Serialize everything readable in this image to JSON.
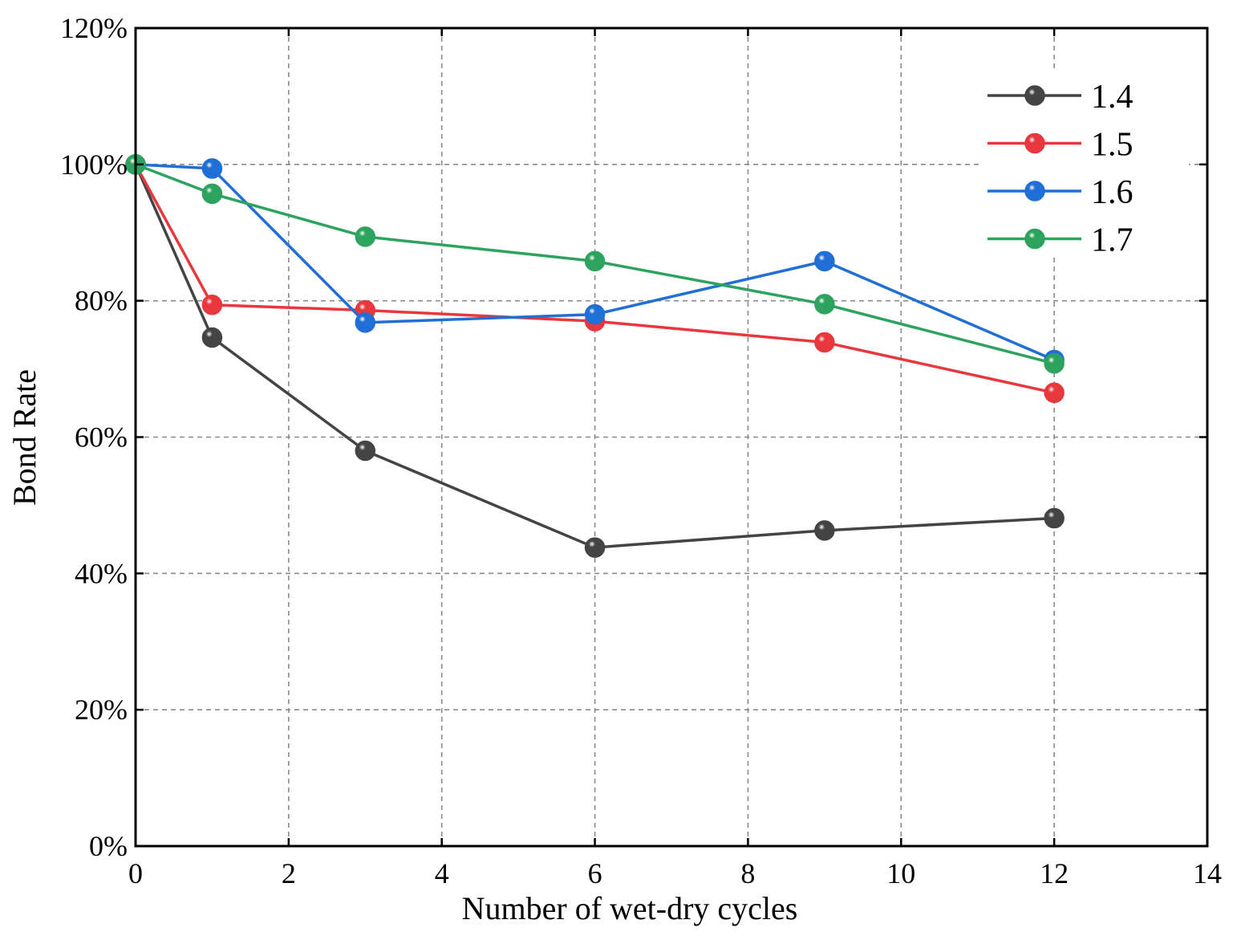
{
  "chart_data": {
    "type": "line",
    "title": "",
    "xlabel": "Number of wet-dry cycles",
    "ylabel": "Bond Rate",
    "xlim": [
      0,
      14
    ],
    "ylim": [
      0,
      120
    ],
    "xticks": [
      0,
      2,
      4,
      6,
      8,
      10,
      12,
      14
    ],
    "yticks": [
      0,
      20,
      40,
      60,
      80,
      100,
      120
    ],
    "x_tick_labels": [
      "0",
      "2",
      "4",
      "6",
      "8",
      "10",
      "12",
      "14"
    ],
    "y_tick_labels": [
      "0%",
      "20%",
      "40%",
      "60%",
      "80%",
      "100%",
      "120%"
    ],
    "grid": true,
    "legend_position": "top-right",
    "x": [
      0,
      1,
      3,
      6,
      9,
      12
    ],
    "series": [
      {
        "name": "1.4",
        "color": "#444444",
        "values": [
          100,
          74.6,
          58.0,
          43.8,
          46.3,
          48.1
        ]
      },
      {
        "name": "1.5",
        "color": "#e8373d",
        "values": [
          100,
          79.4,
          78.6,
          77.0,
          73.9,
          66.5
        ]
      },
      {
        "name": "1.6",
        "color": "#1f6fd6",
        "values": [
          100,
          99.4,
          76.8,
          78.0,
          85.8,
          71.3
        ]
      },
      {
        "name": "1.7",
        "color": "#2ea35f",
        "values": [
          100,
          95.7,
          89.4,
          85.8,
          79.5,
          70.8
        ]
      }
    ]
  }
}
